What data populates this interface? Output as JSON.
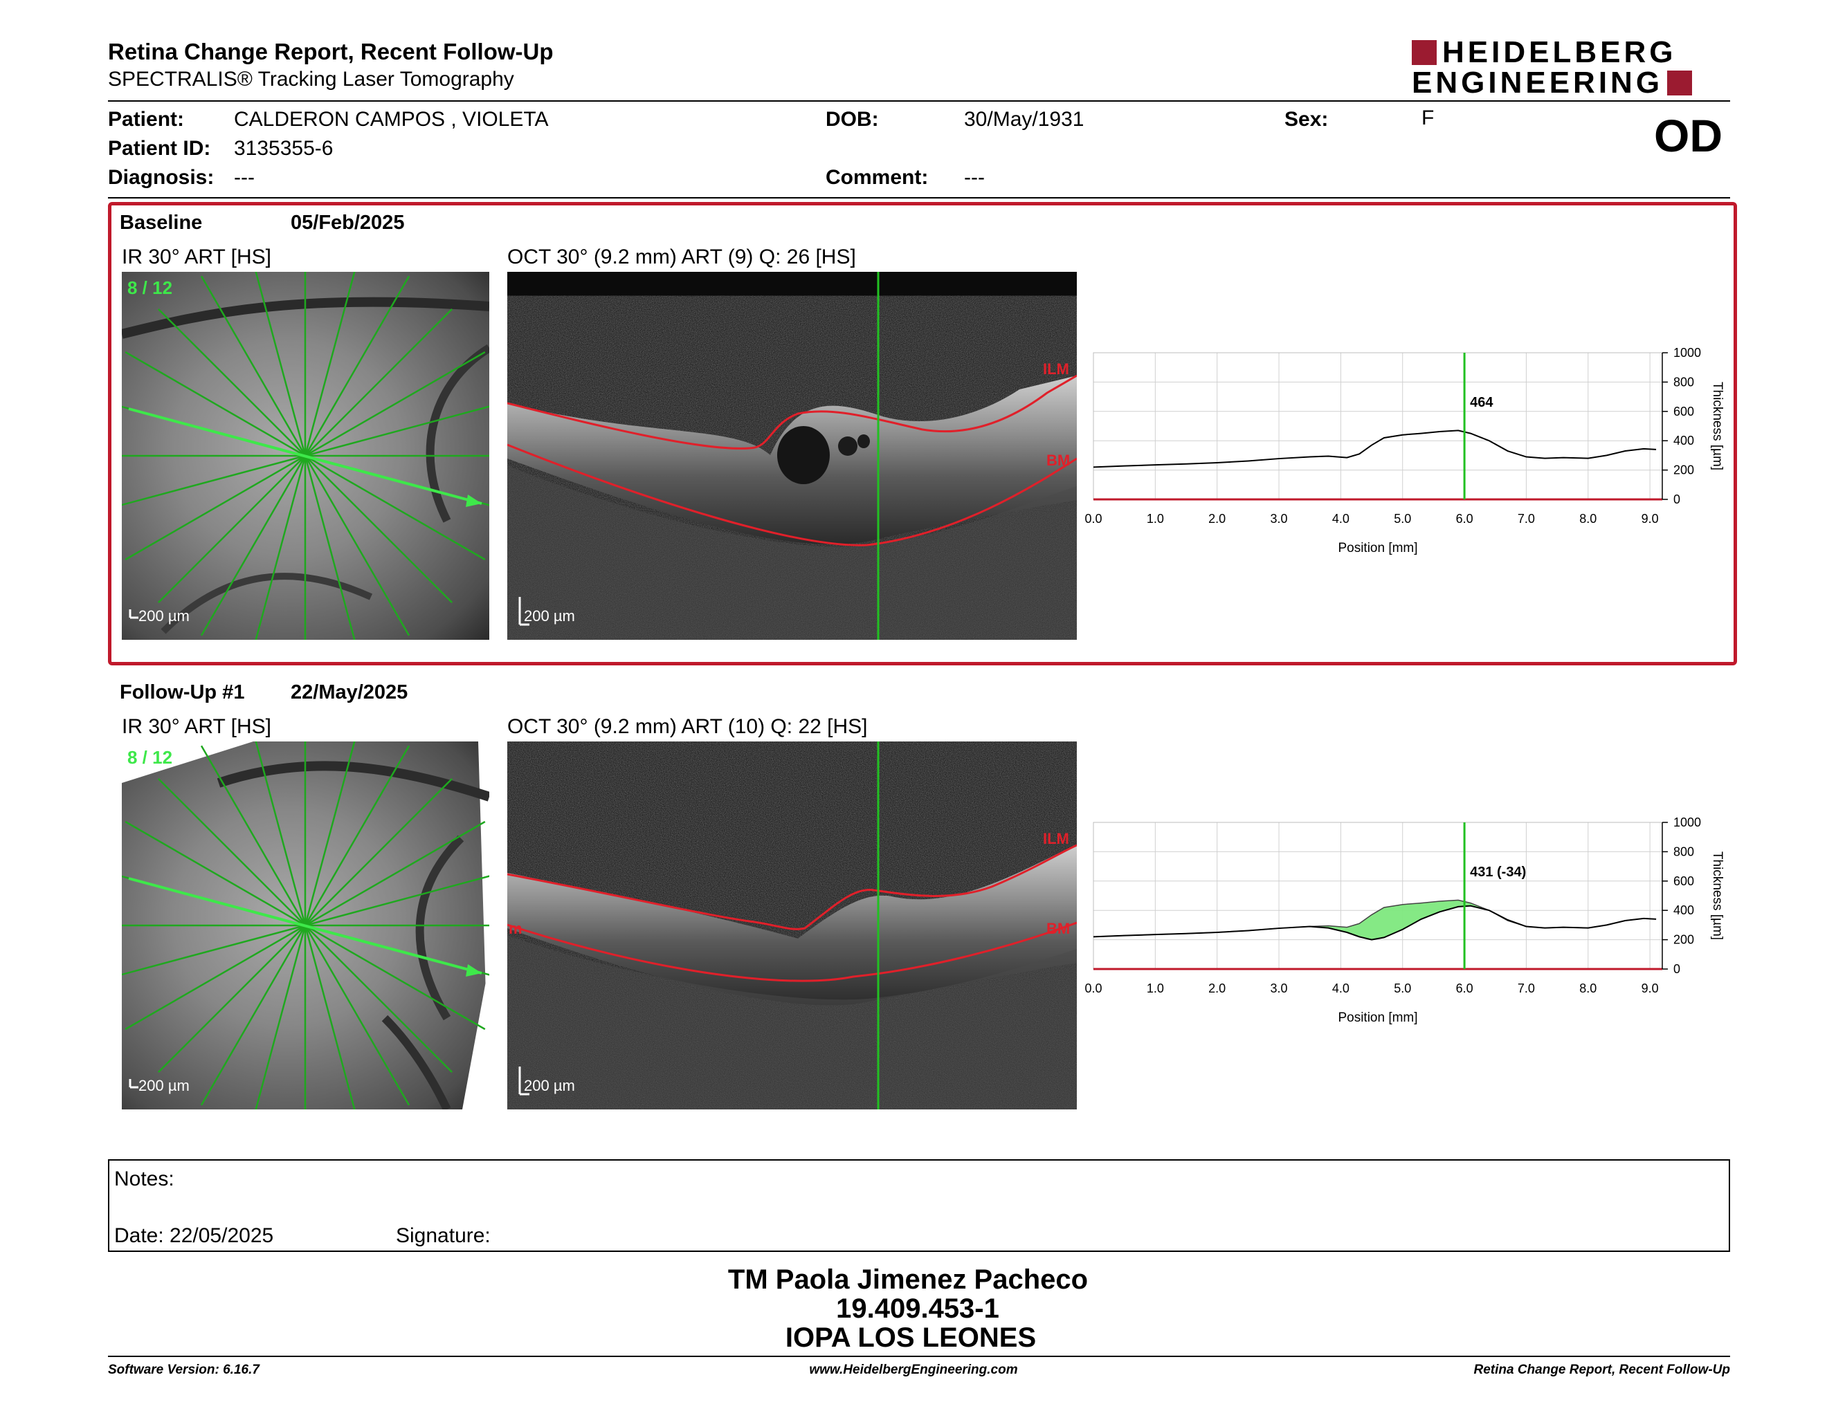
{
  "header": {
    "title": "Retina Change Report, Recent Follow-Up",
    "subtitle": "SPECTRALIS® Tracking Laser Tomography",
    "logo_line1": "HEIDELBERG",
    "logo_line2": "ENGINEERING",
    "eye": "OD"
  },
  "patient": {
    "name_label": "Patient:",
    "name": "CALDERON CAMPOS , VIOLETA",
    "id_label": "Patient ID:",
    "id": "3135355-6",
    "diagnosis_label": "Diagnosis:",
    "diagnosis": "---",
    "dob_label": "DOB:",
    "dob": "30/May/1931",
    "comment_label": "Comment:",
    "comment": "---",
    "sex_label": "Sex:",
    "sex": "F"
  },
  "baseline": {
    "label": "Baseline",
    "date": "05/Feb/2025",
    "ir_caption": "IR 30° ART [HS]",
    "oct_caption": "OCT 30° (9.2 mm) ART (9) Q: 26 [HS]",
    "scan_index": "8 / 12",
    "scale_label": "200 µm",
    "ilm_label": "ILM",
    "bm_label": "BM"
  },
  "followup": {
    "label": "Follow-Up #1",
    "date": "22/May/2025",
    "ir_caption": "IR 30° ART [HS]",
    "oct_caption": "OCT 30° (9.2 mm) ART (10) Q: 22 [HS]",
    "scan_index": "8 / 12",
    "scale_label": "200 µm",
    "ilm_label": "ILM",
    "bm_label": "BM",
    "left_edge_label": "m"
  },
  "chart_data": [
    {
      "type": "line",
      "title": "",
      "xlabel": "Position [mm]",
      "ylabel": "Thickness [µm]",
      "xlim": [
        0,
        9.2
      ],
      "ylim": [
        0,
        1000
      ],
      "xticks": [
        "0.0",
        "1.0",
        "2.0",
        "3.0",
        "4.0",
        "5.0",
        "6.0",
        "7.0",
        "8.0",
        "9.0"
      ],
      "yticks": [
        "0",
        "200",
        "400",
        "600",
        "800",
        "1000"
      ],
      "grid": true,
      "marker_x": 6.0,
      "marker_label": "464",
      "series": [
        {
          "x": [
            0,
            0.5,
            1,
            1.5,
            2,
            2.5,
            3,
            3.5,
            3.8,
            4.1,
            4.3,
            4.5,
            4.7,
            5,
            5.3,
            5.6,
            5.9,
            6.1,
            6.4,
            6.7,
            7,
            7.3,
            7.6,
            8,
            8.3,
            8.6,
            8.9,
            9.1
          ],
          "values": [
            220,
            228,
            235,
            242,
            250,
            262,
            278,
            290,
            295,
            285,
            310,
            370,
            420,
            440,
            450,
            462,
            470,
            450,
            400,
            330,
            290,
            280,
            285,
            280,
            300,
            330,
            345,
            340
          ]
        }
      ]
    },
    {
      "type": "area",
      "title": "",
      "xlabel": "Position [mm]",
      "ylabel": "Thickness [µm]",
      "xlim": [
        0,
        9.2
      ],
      "ylim": [
        0,
        1000
      ],
      "xticks": [
        "0.0",
        "1.0",
        "2.0",
        "3.0",
        "4.0",
        "5.0",
        "6.0",
        "7.0",
        "8.0",
        "9.0"
      ],
      "yticks": [
        "0",
        "200",
        "400",
        "600",
        "800",
        "1000"
      ],
      "grid": true,
      "marker_x": 6.0,
      "marker_label": "431 (-34)",
      "series": [
        {
          "x": [
            0,
            0.5,
            1,
            1.5,
            2,
            2.5,
            3,
            3.5,
            3.8,
            4.1,
            4.3,
            4.5,
            4.7,
            5,
            5.3,
            5.6,
            5.9,
            6.1,
            6.4,
            6.7,
            7,
            7.3,
            7.6,
            8,
            8.3,
            8.6,
            8.9,
            9.1
          ],
          "values": [
            220,
            228,
            235,
            242,
            250,
            262,
            278,
            290,
            295,
            285,
            310,
            370,
            420,
            440,
            450,
            462,
            470,
            450,
            400,
            330,
            290,
            280,
            285,
            280,
            300,
            330,
            345,
            340
          ]
        },
        {
          "x": [
            0,
            0.5,
            1,
            1.5,
            2,
            2.5,
            3,
            3.5,
            3.8,
            4.1,
            4.3,
            4.5,
            4.7,
            5,
            5.3,
            5.6,
            5.9,
            6.1,
            6.4,
            6.7,
            7,
            7.3,
            7.6,
            8,
            8.3,
            8.6,
            8.9,
            9.1
          ],
          "values": [
            220,
            228,
            235,
            242,
            250,
            262,
            278,
            290,
            280,
            250,
            220,
            200,
            215,
            270,
            340,
            390,
            425,
            431,
            400,
            335,
            290,
            280,
            285,
            280,
            300,
            330,
            345,
            340
          ]
        }
      ]
    }
  ],
  "notes": {
    "notes_label": "Notes:",
    "date_label": "Date: 22/05/2025",
    "signature_label": "Signature:"
  },
  "signature_block": {
    "name": "TM Paola Jimenez Pacheco",
    "rut": "19.409.453-1",
    "institution": "IOPA LOS LEONES"
  },
  "footer": {
    "software": "Software Version: 6.16.7",
    "website": "www.HeidelbergEngineering.com",
    "report_name": "Retina Change Report, Recent Follow-Up"
  },
  "colors": {
    "accent_red": "#c0192b",
    "logo_red": "#9b1b30",
    "scan_green": "#22c022",
    "fill_green": "#7ee87e"
  }
}
